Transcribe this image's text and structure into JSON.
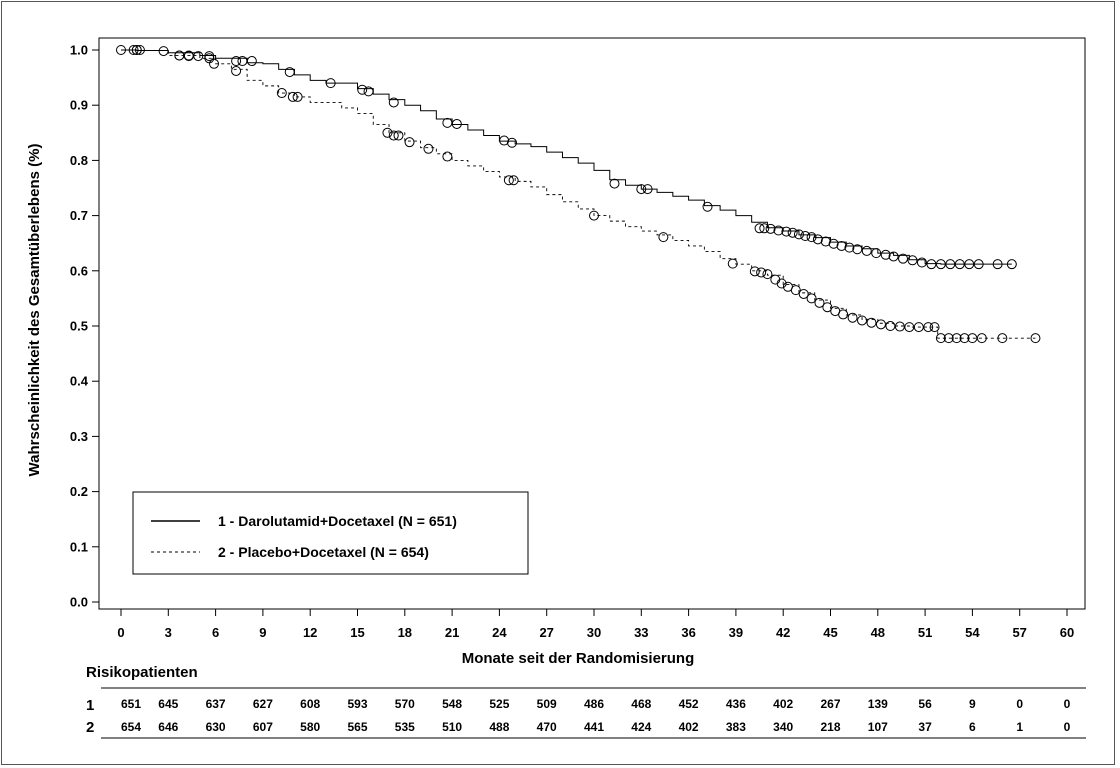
{
  "chart_data": {
    "type": "line",
    "title": "",
    "xlabel": "Monate seit der Randomisierung",
    "ylabel": "Wahrscheinlichkeit des Gesamtüberlebens (%)",
    "xlim": [
      0,
      60
    ],
    "ylim": [
      0,
      1
    ],
    "x_ticks": [
      "0",
      "3",
      "6",
      "9",
      "12",
      "15",
      "18",
      "21",
      "24",
      "27",
      "30",
      "33",
      "36",
      "39",
      "42",
      "45",
      "48",
      "51",
      "54",
      "57",
      "60"
    ],
    "y_ticks": [
      "0.0",
      "0.1",
      "0.2",
      "0.3",
      "0.4",
      "0.5",
      "0.6",
      "0.7",
      "0.8",
      "0.9",
      "1.0"
    ],
    "legend_position": "bottom-left",
    "grid": false,
    "series": [
      {
        "name": "1 - Darolutamid+Docetaxel (N = 651)",
        "line_style": "solid",
        "points": [
          [
            0,
            1.0
          ],
          [
            1,
            0.999
          ],
          [
            3,
            0.995
          ],
          [
            5,
            0.99
          ],
          [
            6,
            0.985
          ],
          [
            8,
            0.977
          ],
          [
            9,
            0.975
          ],
          [
            10,
            0.965
          ],
          [
            11,
            0.955
          ],
          [
            12,
            0.945
          ],
          [
            13,
            0.94
          ],
          [
            15,
            0.93
          ],
          [
            16,
            0.92
          ],
          [
            17,
            0.91
          ],
          [
            18,
            0.9
          ],
          [
            19,
            0.89
          ],
          [
            20,
            0.875
          ],
          [
            21,
            0.865
          ],
          [
            22,
            0.855
          ],
          [
            23,
            0.845
          ],
          [
            24,
            0.835
          ],
          [
            25,
            0.83
          ],
          [
            26,
            0.825
          ],
          [
            27,
            0.815
          ],
          [
            28,
            0.805
          ],
          [
            29,
            0.795
          ],
          [
            30,
            0.782
          ],
          [
            31,
            0.765
          ],
          [
            32,
            0.755
          ],
          [
            33,
            0.748
          ],
          [
            34,
            0.742
          ],
          [
            35,
            0.735
          ],
          [
            36,
            0.728
          ],
          [
            37,
            0.718
          ],
          [
            38,
            0.71
          ],
          [
            39,
            0.7
          ],
          [
            40,
            0.688
          ],
          [
            41,
            0.678
          ],
          [
            42,
            0.672
          ],
          [
            43,
            0.665
          ],
          [
            44,
            0.66
          ],
          [
            45,
            0.652
          ],
          [
            46,
            0.645
          ],
          [
            47,
            0.64
          ],
          [
            48,
            0.632
          ],
          [
            49,
            0.628
          ],
          [
            50,
            0.62
          ],
          [
            51,
            0.613
          ],
          [
            52,
            0.612
          ],
          [
            54,
            0.612
          ],
          [
            56.5,
            0.612
          ]
        ],
        "censored": [
          [
            0,
            1.0
          ],
          [
            0.8,
            1.0
          ],
          [
            1,
            1.0
          ],
          [
            1.2,
            1.0
          ],
          [
            2.7,
            0.998
          ],
          [
            3.7,
            0.99
          ],
          [
            4.3,
            0.989
          ],
          [
            4.9,
            0.989
          ],
          [
            5.6,
            0.989
          ],
          [
            7.3,
            0.98
          ],
          [
            7.7,
            0.98
          ],
          [
            8.3,
            0.98
          ],
          [
            10.7,
            0.96
          ],
          [
            13.3,
            0.94
          ],
          [
            15.3,
            0.928
          ],
          [
            15.7,
            0.925
          ],
          [
            17.3,
            0.905
          ],
          [
            20.7,
            0.868
          ],
          [
            21.3,
            0.866
          ],
          [
            24.3,
            0.836
          ],
          [
            24.8,
            0.832
          ],
          [
            31.3,
            0.758
          ],
          [
            33.0,
            0.748
          ],
          [
            33.4,
            0.748
          ],
          [
            37.2,
            0.716
          ],
          [
            40.5,
            0.677
          ],
          [
            40.8,
            0.677
          ],
          [
            41.2,
            0.676
          ],
          [
            41.7,
            0.673
          ],
          [
            42.2,
            0.671
          ],
          [
            42.6,
            0.669
          ],
          [
            43.0,
            0.666
          ],
          [
            43.4,
            0.663
          ],
          [
            43.8,
            0.661
          ],
          [
            44.2,
            0.657
          ],
          [
            44.7,
            0.653
          ],
          [
            45.2,
            0.649
          ],
          [
            45.7,
            0.645
          ],
          [
            46.2,
            0.642
          ],
          [
            46.7,
            0.639
          ],
          [
            47.3,
            0.636
          ],
          [
            47.9,
            0.632
          ],
          [
            48.5,
            0.629
          ],
          [
            49.0,
            0.626
          ],
          [
            49.6,
            0.622
          ],
          [
            50.2,
            0.619
          ],
          [
            50.8,
            0.615
          ],
          [
            51.4,
            0.612
          ],
          [
            52.0,
            0.612
          ],
          [
            52.6,
            0.612
          ],
          [
            53.2,
            0.612
          ],
          [
            53.8,
            0.612
          ],
          [
            54.4,
            0.612
          ],
          [
            55.6,
            0.612
          ],
          [
            56.5,
            0.612
          ]
        ]
      },
      {
        "name": "2 - Placebo+Docetaxel (N = 654)",
        "line_style": "dashed",
        "points": [
          [
            0,
            1.0
          ],
          [
            1,
            0.999
          ],
          [
            3,
            0.99
          ],
          [
            5,
            0.985
          ],
          [
            6,
            0.975
          ],
          [
            7,
            0.965
          ],
          [
            8,
            0.945
          ],
          [
            9,
            0.935
          ],
          [
            10,
            0.922
          ],
          [
            11,
            0.915
          ],
          [
            12,
            0.905
          ],
          [
            14,
            0.895
          ],
          [
            15,
            0.885
          ],
          [
            16,
            0.865
          ],
          [
            17,
            0.85
          ],
          [
            18,
            0.835
          ],
          [
            19,
            0.823
          ],
          [
            20,
            0.812
          ],
          [
            21,
            0.8
          ],
          [
            22,
            0.79
          ],
          [
            23,
            0.78
          ],
          [
            24,
            0.77
          ],
          [
            25,
            0.762
          ],
          [
            26,
            0.752
          ],
          [
            27,
            0.738
          ],
          [
            28,
            0.725
          ],
          [
            29,
            0.712
          ],
          [
            30,
            0.7
          ],
          [
            31,
            0.69
          ],
          [
            32,
            0.68
          ],
          [
            33,
            0.672
          ],
          [
            34,
            0.665
          ],
          [
            35,
            0.655
          ],
          [
            36,
            0.645
          ],
          [
            37,
            0.635
          ],
          [
            38,
            0.622
          ],
          [
            39,
            0.612
          ],
          [
            40,
            0.6
          ],
          [
            41,
            0.592
          ],
          [
            42,
            0.575
          ],
          [
            43,
            0.56
          ],
          [
            44,
            0.547
          ],
          [
            45,
            0.532
          ],
          [
            46,
            0.52
          ],
          [
            47,
            0.512
          ],
          [
            48,
            0.505
          ],
          [
            49,
            0.5
          ],
          [
            50,
            0.498
          ],
          [
            51,
            0.498
          ],
          [
            51.8,
            0.478
          ],
          [
            55,
            0.478
          ],
          [
            58,
            0.478
          ]
        ],
        "censored": [
          [
            1,
            1.0
          ],
          [
            3.7,
            0.99
          ],
          [
            4.3,
            0.99
          ],
          [
            5.6,
            0.985
          ],
          [
            5.9,
            0.975
          ],
          [
            7.3,
            0.962
          ],
          [
            10.2,
            0.922
          ],
          [
            10.9,
            0.915
          ],
          [
            11.2,
            0.915
          ],
          [
            16.9,
            0.85
          ],
          [
            17.3,
            0.845
          ],
          [
            17.6,
            0.845
          ],
          [
            18.3,
            0.833
          ],
          [
            19.5,
            0.821
          ],
          [
            20.7,
            0.807
          ],
          [
            24.6,
            0.764
          ],
          [
            24.9,
            0.764
          ],
          [
            30.0,
            0.7
          ],
          [
            34.4,
            0.661
          ],
          [
            38.8,
            0.613
          ],
          [
            40.2,
            0.599
          ],
          [
            40.6,
            0.597
          ],
          [
            41.0,
            0.594
          ],
          [
            41.5,
            0.584
          ],
          [
            41.9,
            0.577
          ],
          [
            42.3,
            0.571
          ],
          [
            42.8,
            0.565
          ],
          [
            43.3,
            0.558
          ],
          [
            43.8,
            0.55
          ],
          [
            44.3,
            0.542
          ],
          [
            44.8,
            0.534
          ],
          [
            45.3,
            0.527
          ],
          [
            45.8,
            0.521
          ],
          [
            46.4,
            0.515
          ],
          [
            47.0,
            0.51
          ],
          [
            47.6,
            0.506
          ],
          [
            48.2,
            0.503
          ],
          [
            48.8,
            0.5
          ],
          [
            49.4,
            0.499
          ],
          [
            50.0,
            0.498
          ],
          [
            50.6,
            0.498
          ],
          [
            51.2,
            0.498
          ],
          [
            51.6,
            0.498
          ],
          [
            52.0,
            0.478
          ],
          [
            52.5,
            0.478
          ],
          [
            53.0,
            0.478
          ],
          [
            53.5,
            0.478
          ],
          [
            54.0,
            0.478
          ],
          [
            54.6,
            0.478
          ],
          [
            55.9,
            0.478
          ],
          [
            58.0,
            0.478
          ]
        ]
      }
    ]
  },
  "legend": {
    "items": [
      {
        "label": "1 - Darolutamid+Docetaxel  (N = 651)",
        "line_style": "solid"
      },
      {
        "label": "2 - Placebo+Docetaxel  (N = 654)",
        "line_style": "dashed"
      }
    ]
  },
  "risk_table": {
    "title": "Risikopatienten",
    "rows": [
      {
        "label": "1",
        "values": [
          "651",
          "645",
          "637",
          "627",
          "608",
          "593",
          "570",
          "548",
          "525",
          "509",
          "486",
          "468",
          "452",
          "436",
          "402",
          "267",
          "139",
          "56",
          "9",
          "0",
          "0"
        ]
      },
      {
        "label": "2",
        "values": [
          "654",
          "646",
          "630",
          "607",
          "580",
          "565",
          "535",
          "510",
          "488",
          "470",
          "441",
          "424",
          "402",
          "383",
          "340",
          "218",
          "107",
          "37",
          "6",
          "1",
          "0"
        ]
      }
    ]
  }
}
